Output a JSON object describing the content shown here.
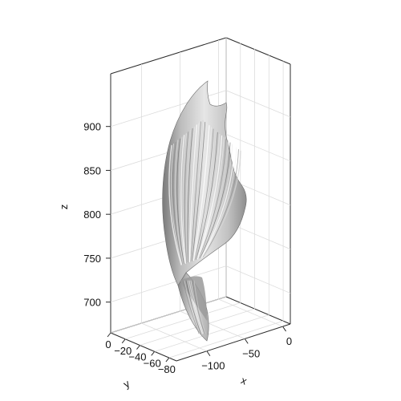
{
  "chart_data": {
    "type": "surface3d",
    "title": "",
    "xlabel": "x",
    "ylabel": "y",
    "zlabel": "z",
    "x_ticks": [
      -100,
      -50,
      0
    ],
    "x_tick_labels": [
      "−100",
      "−50",
      "0"
    ],
    "y_ticks": [
      0,
      -20,
      -40,
      -60,
      -80
    ],
    "y_tick_labels": [
      "0",
      "−20",
      "−40",
      "−60",
      "−80"
    ],
    "z_ticks": [
      700,
      750,
      800,
      850,
      900
    ],
    "z_tick_labels": [
      "700",
      "750",
      "800",
      "850",
      "900"
    ],
    "xlim": [
      -140,
      10
    ],
    "ylim": [
      0,
      -90
    ],
    "zlim": [
      665,
      960
    ],
    "grid": true,
    "legend": "none",
    "surface_color": "#a9a9a9",
    "highlight_color": "#f2f2f2",
    "shadow_color": "#6e6e6e"
  }
}
